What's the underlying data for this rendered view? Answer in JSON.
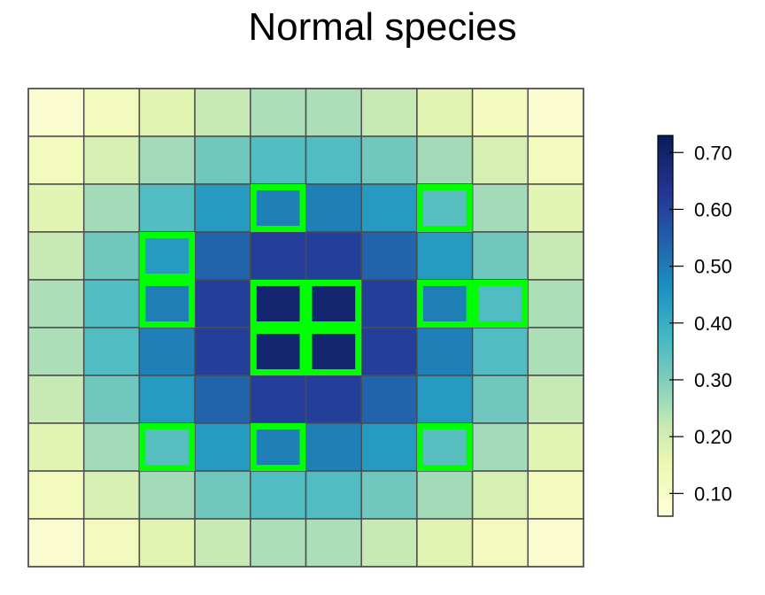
{
  "chart_data": {
    "type": "heatmap",
    "title": "Normal species",
    "rows": 10,
    "cols": 10,
    "values": [
      [
        0.08,
        0.12,
        0.17,
        0.22,
        0.25,
        0.25,
        0.22,
        0.17,
        0.12,
        0.08
      ],
      [
        0.12,
        0.19,
        0.26,
        0.32,
        0.36,
        0.36,
        0.32,
        0.26,
        0.19,
        0.12
      ],
      [
        0.17,
        0.26,
        0.36,
        0.44,
        0.49,
        0.49,
        0.44,
        0.35,
        0.26,
        0.17
      ],
      [
        0.22,
        0.32,
        0.44,
        0.54,
        0.61,
        0.61,
        0.54,
        0.44,
        0.32,
        0.22
      ],
      [
        0.25,
        0.36,
        0.49,
        0.61,
        0.69,
        0.69,
        0.61,
        0.49,
        0.36,
        0.25
      ],
      [
        0.25,
        0.36,
        0.49,
        0.61,
        0.69,
        0.69,
        0.61,
        0.49,
        0.36,
        0.25
      ],
      [
        0.22,
        0.32,
        0.44,
        0.54,
        0.61,
        0.61,
        0.54,
        0.44,
        0.32,
        0.22
      ],
      [
        0.17,
        0.26,
        0.35,
        0.44,
        0.49,
        0.49,
        0.44,
        0.35,
        0.26,
        0.17
      ],
      [
        0.12,
        0.19,
        0.26,
        0.32,
        0.36,
        0.36,
        0.32,
        0.26,
        0.19,
        0.12
      ],
      [
        0.08,
        0.12,
        0.17,
        0.22,
        0.25,
        0.25,
        0.22,
        0.17,
        0.12,
        0.08
      ]
    ],
    "highlighted_cells": [
      [
        2,
        4
      ],
      [
        2,
        7
      ],
      [
        3,
        2
      ],
      [
        4,
        2
      ],
      [
        4,
        4
      ],
      [
        4,
        5
      ],
      [
        5,
        4
      ],
      [
        5,
        5
      ],
      [
        4,
        7
      ],
      [
        4,
        8
      ],
      [
        7,
        2
      ],
      [
        7,
        4
      ],
      [
        7,
        7
      ]
    ],
    "highlight_color": "#00ff00",
    "grid_color": "#4d4d4d",
    "colorbar": {
      "range": [
        0.06,
        0.73
      ],
      "ticks": [
        "0.10",
        "0.20",
        "0.30",
        "0.40",
        "0.50",
        "0.60",
        "0.70"
      ],
      "tick_values": [
        0.1,
        0.2,
        0.3,
        0.4,
        0.5,
        0.6,
        0.7
      ],
      "placement": "right"
    },
    "palette": [
      [
        0.06,
        "#ffffd9"
      ],
      [
        0.15,
        "#edf8b1"
      ],
      [
        0.22,
        "#c7e9b4"
      ],
      [
        0.3,
        "#7fcdbb"
      ],
      [
        0.38,
        "#41b6c4"
      ],
      [
        0.46,
        "#1d91c0"
      ],
      [
        0.55,
        "#225ea8"
      ],
      [
        0.63,
        "#253494"
      ],
      [
        0.73,
        "#081d58"
      ]
    ]
  }
}
